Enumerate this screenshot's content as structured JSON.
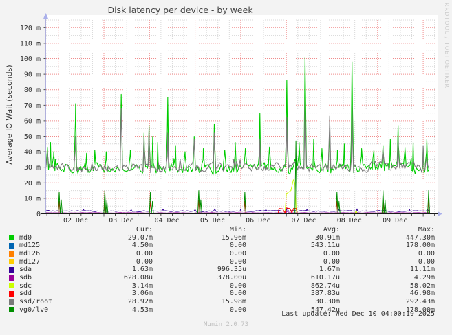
{
  "image": {
    "watermark": "RRDTOOL / TOBI OETIKER",
    "munin_version": "Munin 2.0.73",
    "last_update": "Last update: Wed Dec 10 04:00:19 2025"
  },
  "legend": {
    "headers": {
      "cur": "Cur:",
      "min": "Min:",
      "avg": "Avg:",
      "max": "Max:"
    }
  },
  "chart_data": {
    "type": "line",
    "title": "Disk latency per device - by week",
    "ylabel": "Average IO Wait (seconds)",
    "xlabel": "",
    "ylim_m": [
      0,
      126
    ],
    "grid": {
      "major_m": 10,
      "minor_m": 5,
      "major_day": 1,
      "minor_day": 0.25,
      "grid_on": true
    },
    "x_domain": {
      "start_day": -0.27,
      "end_day": 8.15,
      "grid_end_day": 8.285
    },
    "y_ticks": [
      {
        "v": 0,
        "label": "0"
      },
      {
        "v": 10,
        "label": "10 m"
      },
      {
        "v": 20,
        "label": "20 m"
      },
      {
        "v": 30,
        "label": "30 m"
      },
      {
        "v": 40,
        "label": "40 m"
      },
      {
        "v": 50,
        "label": "50 m"
      },
      {
        "v": 60,
        "label": "60 m"
      },
      {
        "v": 70,
        "label": "70 m"
      },
      {
        "v": 80,
        "label": "80 m"
      },
      {
        "v": 90,
        "label": "90 m"
      },
      {
        "v": 100,
        "label": "100 m"
      },
      {
        "v": 110,
        "label": "110 m"
      },
      {
        "v": 120,
        "label": "120 m"
      }
    ],
    "x_ticks": [
      {
        "day": 0,
        "label": "02 Dec"
      },
      {
        "day": 1,
        "label": "03 Dec"
      },
      {
        "day": 2,
        "label": "04 Dec"
      },
      {
        "day": 3,
        "label": "05 Dec"
      },
      {
        "day": 4,
        "label": "06 Dec"
      },
      {
        "day": 5,
        "label": "07 Dec"
      },
      {
        "day": 6,
        "label": "08 Dec"
      },
      {
        "day": 7,
        "label": "09 Dec"
      }
    ],
    "series": [
      {
        "name": "md0",
        "color": "#00CC00",
        "cur": "29.07m",
        "min": "15.96m",
        "avg": "30.91m",
        "max": "447.30m",
        "draw": {
          "seed": 11,
          "base": 29.5,
          "noise": 3.1,
          "burst": 6,
          "floor": 22.5,
          "width": 1.1,
          "spike_hw": 0.035,
          "spikes": [
            [
              -0.24,
              43
            ],
            [
              -0.17,
              46
            ],
            [
              -0.1,
              40
            ],
            [
              0.38,
              71
            ],
            [
              0.62,
              39
            ],
            [
              0.8,
              41
            ],
            [
              1.05,
              40
            ],
            [
              1.38,
              77
            ],
            [
              1.58,
              41
            ],
            [
              1.88,
              52
            ],
            [
              1.99,
              57
            ],
            [
              2.07,
              50
            ],
            [
              2.18,
              46
            ],
            [
              2.4,
              75
            ],
            [
              2.57,
              44
            ],
            [
              2.78,
              40
            ],
            [
              2.98,
              50
            ],
            [
              3.18,
              42
            ],
            [
              3.42,
              58
            ],
            [
              3.65,
              41
            ],
            [
              3.88,
              46
            ],
            [
              4.1,
              42
            ],
            [
              4.42,
              65
            ],
            [
              4.63,
              43
            ],
            [
              5.01,
              86
            ],
            [
              5.28,
              46
            ],
            [
              5.41,
              101
            ],
            [
              5.6,
              48
            ],
            [
              5.78,
              42
            ],
            [
              5.95,
              55
            ],
            [
              6.12,
              41
            ],
            [
              6.27,
              45
            ],
            [
              6.44,
              98
            ],
            [
              6.65,
              42
            ],
            [
              6.92,
              41
            ],
            [
              7.12,
              44
            ],
            [
              7.28,
              48
            ],
            [
              7.45,
              57
            ],
            [
              7.6,
              43
            ],
            [
              7.78,
              46
            ],
            [
              8.0,
              42
            ],
            [
              8.08,
              48
            ]
          ]
        }
      },
      {
        "name": "md125",
        "color": "#0066B3",
        "cur": "4.50m",
        "min": "0.00",
        "avg": "543.11u",
        "max": "178.00m",
        "draw": {
          "seed": 12,
          "base": 0.22,
          "noise": 0.06,
          "floor": 0.05,
          "width": 1,
          "spike_hw": 0.02,
          "spikes": [
            [
              8.14,
              4.5
            ]
          ]
        }
      },
      {
        "name": "md126",
        "color": "#FF8000",
        "cur": "0.00",
        "min": "0.00",
        "avg": "0.00",
        "max": "0.00",
        "draw": {
          "seed": 13,
          "base": 0.05,
          "noise": 0.02,
          "floor": 0.02,
          "width": 1,
          "spike_hw": 0.02,
          "spikes": []
        }
      },
      {
        "name": "md127",
        "color": "#FFCC00",
        "cur": "0.00",
        "min": "0.00",
        "avg": "0.00",
        "max": "0.00",
        "draw": {
          "seed": 14,
          "base": 0.07,
          "noise": 0.02,
          "floor": 0.02,
          "width": 1,
          "spike_hw": 0.02,
          "spikes": []
        }
      },
      {
        "name": "sda",
        "color": "#330099",
        "cur": "1.63m",
        "min": "996.35u",
        "avg": "1.67m",
        "max": "11.11m",
        "draw": {
          "seed": 15,
          "base": 1.8,
          "noise": 0.3,
          "floor": 1.0,
          "width": 1,
          "spike_hw": 0.03,
          "spikes": [
            [
              0.55,
              3
            ],
            [
              1.02,
              2.8
            ],
            [
              1.6,
              2.7
            ],
            [
              2.3,
              3
            ],
            [
              3.0,
              2.9
            ],
            [
              3.43,
              3.2
            ],
            [
              4.0,
              3.2
            ],
            [
              4.55,
              2.8
            ],
            [
              5.02,
              3.6
            ],
            [
              5.45,
              3
            ],
            [
              6.15,
              3
            ],
            [
              6.55,
              3.2
            ],
            [
              7.15,
              3
            ],
            [
              7.7,
              3
            ],
            [
              8.1,
              2.9
            ]
          ]
        }
      },
      {
        "name": "sdb",
        "color": "#990099",
        "cur": "628.08u",
        "min": "378.00u",
        "avg": "610.17u",
        "max": "4.29m",
        "draw": {
          "seed": 16,
          "base": 0.62,
          "noise": 0.12,
          "floor": 0.3,
          "width": 1,
          "spike_hw": 0.025,
          "spikes": [
            [
              5.02,
              2
            ],
            [
              6.53,
              1.5
            ]
          ]
        }
      },
      {
        "name": "sdc",
        "color": "#CCFF00",
        "cur": "3.14m",
        "min": "0.00",
        "avg": "862.74u",
        "max": "58.02m",
        "draw": {
          "seed": 17,
          "base": 0.06,
          "noise": 0.03,
          "floor": 0.02,
          "width": 1,
          "spike_hw": 0.025,
          "spikes": [
            [
              6.53,
              2.2
            ]
          ],
          "events": [
            [
              4.97,
              0.1
            ],
            [
              5.0,
              13
            ],
            [
              5.05,
              14
            ],
            [
              5.1,
              15
            ],
            [
              5.155,
              22
            ],
            [
              5.185,
              20
            ],
            [
              5.215,
              3
            ],
            [
              5.23,
              0.1
            ]
          ]
        }
      },
      {
        "name": "sdd",
        "color": "#FF0000",
        "cur": "3.06m",
        "min": "0.00",
        "avg": "387.83u",
        "max": "46.98m",
        "draw": {
          "seed": 18,
          "base": 0.3,
          "noise": 0.1,
          "floor": 0.1,
          "width": 1,
          "spike_hw": 0.022,
          "spikes": [
            [
              0.02,
              8
            ],
            [
              1.02,
              8.5
            ],
            [
              2.02,
              8
            ],
            [
              3.08,
              8.5
            ],
            [
              4.09,
              8
            ],
            [
              6.11,
              8
            ],
            [
              7.12,
              8.5
            ],
            [
              8.12,
              9
            ]
          ],
          "events": [
            [
              4.82,
              0.3
            ],
            [
              4.84,
              3.5
            ],
            [
              4.92,
              3.2
            ],
            [
              4.97,
              0.5
            ],
            [
              5.0,
              3.8
            ],
            [
              5.08,
              3.4
            ],
            [
              5.12,
              0.5
            ],
            [
              5.16,
              3.6
            ],
            [
              5.22,
              3.4
            ],
            [
              5.24,
              0.3
            ]
          ]
        }
      },
      {
        "name": "ssd/root",
        "color": "#7A7A7A",
        "cur": "28.92m",
        "min": "15.98m",
        "avg": "30.30m",
        "max": "292.43m",
        "draw": {
          "seed": 19,
          "base": 30,
          "noise": 3.0,
          "burst": 6,
          "floor": 23,
          "width": 1.1,
          "spike_hw": 0.035,
          "spikes": [
            [
              -0.24,
              40
            ],
            [
              0.38,
              50
            ],
            [
              1.38,
              68
            ],
            [
              1.88,
              50
            ],
            [
              1.99,
              55
            ],
            [
              2.4,
              52
            ],
            [
              2.98,
              48
            ],
            [
              3.42,
              52
            ],
            [
              4.42,
              48
            ],
            [
              5.01,
              62
            ],
            [
              5.41,
              74
            ],
            [
              5.95,
              63
            ],
            [
              6.44,
              70
            ],
            [
              7.12,
              42
            ],
            [
              7.45,
              50
            ],
            [
              8.0,
              44
            ]
          ]
        }
      },
      {
        "name": "vg0/lv0",
        "color": "#008F00",
        "cur": "4.53m",
        "min": "0.00",
        "avg": "547.42u",
        "max": "178.00m",
        "draw": {
          "seed": 20,
          "base": 0.35,
          "noise": 0.1,
          "floor": 0.15,
          "width": 1,
          "spike_hw": 0.022,
          "spikes": [
            [
              0.02,
              14
            ],
            [
              0.065,
              9
            ],
            [
              1.02,
              15
            ],
            [
              1.065,
              9
            ],
            [
              2.02,
              14
            ],
            [
              2.065,
              8
            ],
            [
              3.08,
              15
            ],
            [
              3.125,
              9
            ],
            [
              4.09,
              14
            ],
            [
              5.21,
              47
            ],
            [
              6.11,
              14
            ],
            [
              6.155,
              8
            ],
            [
              7.12,
              15
            ],
            [
              7.165,
              9
            ],
            [
              8.12,
              15
            ]
          ]
        }
      }
    ]
  }
}
